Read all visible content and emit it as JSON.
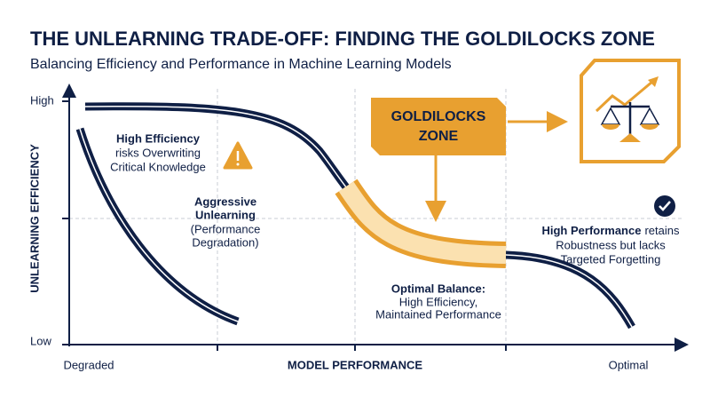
{
  "header": {
    "title": "THE UNLEARNING TRADE-OFF: FINDING THE GOLDILOCKS ZONE",
    "subtitle": "Balancing Efficiency and Performance in Machine Learning Models"
  },
  "axes": {
    "y_label": "UNLEARNING EFFICIENCY",
    "y_high": "High",
    "y_low": "Low",
    "x_label": "MODEL PERFORMANCE",
    "x_low": "Degraded",
    "x_high": "Optimal"
  },
  "zone": {
    "lines": [
      "GOLDILOCKS",
      "ZONE"
    ]
  },
  "annotations": {
    "high_efficiency": {
      "bold": "High Efficiency",
      "lines": [
        "risks Overwriting",
        "Critical Knowledge"
      ]
    },
    "aggressive": {
      "bold": [
        "Aggressive",
        "Unlearning"
      ],
      "lines": [
        "(Performance",
        "Degradation)"
      ]
    },
    "optimal": {
      "bold": "Optimal Balance:",
      "lines": [
        "High Efficiency,",
        "Maintained Performance"
      ]
    },
    "high_performance": {
      "bold": "High Performance",
      "rest": "retains",
      "lines": [
        "Robustness but lacks",
        "Targeted Forgetting"
      ]
    }
  }
}
